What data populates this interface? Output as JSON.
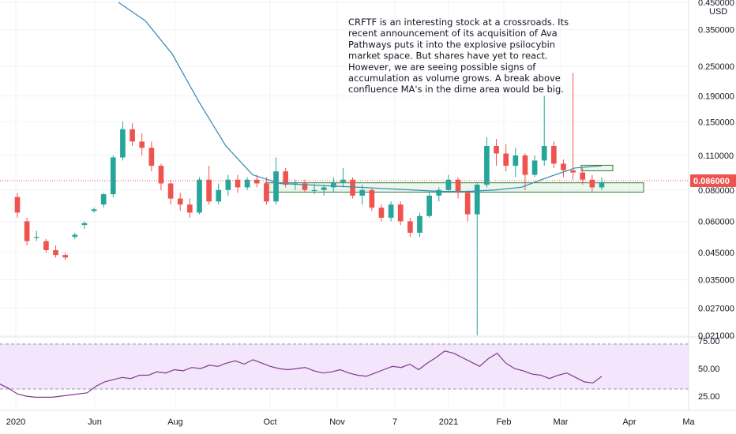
{
  "chart_data": [
    {
      "type": "candlestick",
      "currency": "USD",
      "yscale": "log",
      "ylim": [
        0.021,
        0.45
      ],
      "ytick_labels": [
        "0.450000",
        "0.350000",
        "0.250000",
        "0.190000",
        "0.150000",
        "0.110000",
        "0.080000",
        "0.060000",
        "0.045000",
        "0.035000",
        "0.027000",
        "0.021000"
      ],
      "ytick_values": [
        0.45,
        0.35,
        0.25,
        0.19,
        0.15,
        0.11,
        0.08,
        0.06,
        0.045,
        0.035,
        0.027,
        0.021
      ],
      "xtick_labels": [
        "2020",
        "Jun",
        "Aug",
        "Oct",
        "Nov",
        "7",
        "2021",
        "Feb",
        "Mar",
        "Apr",
        "Ma"
      ],
      "last_price_label": "0.086000",
      "last_price": 0.086,
      "annotation": "CRFTF is an interesting stock at a crossroads. Its recent announcement of its acquisition of Ava Pathways puts it into the explosive psilocybin market space. But shares have yet to react. However, we are seeing possible signs of accumulation as volume grows. A break above confluence MA's in the dime area would be big.",
      "annotation_lines": [
        "CRFTF is an interesting stock at a crossroads. Its",
        "recent announcement of its acquisition of Ava",
        "Pathways puts it into the explosive psilocybin",
        "market space. But shares have yet to react.",
        "However, we are seeing possible signs of",
        "accumulation as volume grows. A break above",
        "confluence MA's in the dime area would be big."
      ],
      "zones": [
        {
          "low": 0.0785,
          "high": 0.0855
        },
        {
          "low": 0.0955,
          "high": 0.1005
        }
      ],
      "candles_weekly_approx": [
        [
          0.075,
          0.078,
          0.062,
          0.065
        ],
        [
          0.06,
          0.062,
          0.048,
          0.05
        ],
        [
          0.052,
          0.055,
          0.05,
          0.052
        ],
        [
          0.05,
          0.051,
          0.045,
          0.046
        ],
        [
          0.046,
          0.048,
          0.043,
          0.044
        ],
        [
          0.044,
          0.045,
          0.042,
          0.043
        ],
        [
          0.052,
          0.054,
          0.051,
          0.053
        ],
        [
          0.058,
          0.06,
          0.056,
          0.059
        ],
        [
          0.066,
          0.068,
          0.065,
          0.067
        ],
        [
          0.07,
          0.078,
          0.068,
          0.077
        ],
        [
          0.077,
          0.11,
          0.075,
          0.108
        ],
        [
          0.108,
          0.15,
          0.105,
          0.14
        ],
        [
          0.14,
          0.148,
          0.12,
          0.125
        ],
        [
          0.125,
          0.135,
          0.11,
          0.118
        ],
        [
          0.118,
          0.125,
          0.095,
          0.1
        ],
        [
          0.1,
          0.102,
          0.08,
          0.085
        ],
        [
          0.085,
          0.088,
          0.07,
          0.074
        ],
        [
          0.074,
          0.078,
          0.066,
          0.07
        ],
        [
          0.07,
          0.074,
          0.062,
          0.065
        ],
        [
          0.065,
          0.09,
          0.064,
          0.088
        ],
        [
          0.088,
          0.1,
          0.07,
          0.072
        ],
        [
          0.072,
          0.085,
          0.07,
          0.08
        ],
        [
          0.08,
          0.092,
          0.076,
          0.088
        ],
        [
          0.088,
          0.092,
          0.078,
          0.082
        ],
        [
          0.082,
          0.09,
          0.08,
          0.088
        ],
        [
          0.088,
          0.092,
          0.082,
          0.085
        ],
        [
          0.085,
          0.09,
          0.07,
          0.072
        ],
        [
          0.072,
          0.108,
          0.07,
          0.095
        ],
        [
          0.095,
          0.098,
          0.082,
          0.084
        ],
        [
          0.084,
          0.088,
          0.08,
          0.085
        ],
        [
          0.085,
          0.088,
          0.078,
          0.08
        ],
        [
          0.08,
          0.085,
          0.077,
          0.08
        ],
        [
          0.08,
          0.084,
          0.076,
          0.082
        ],
        [
          0.082,
          0.09,
          0.078,
          0.086
        ],
        [
          0.086,
          0.098,
          0.082,
          0.088
        ],
        [
          0.088,
          0.09,
          0.074,
          0.076
        ],
        [
          0.076,
          0.084,
          0.07,
          0.08
        ],
        [
          0.08,
          0.082,
          0.066,
          0.068
        ],
        [
          0.068,
          0.07,
          0.06,
          0.062
        ],
        [
          0.062,
          0.072,
          0.06,
          0.07
        ],
        [
          0.07,
          0.072,
          0.058,
          0.06
        ],
        [
          0.06,
          0.062,
          0.052,
          0.054
        ],
        [
          0.054,
          0.065,
          0.052,
          0.063
        ],
        [
          0.063,
          0.078,
          0.062,
          0.076
        ],
        [
          0.076,
          0.082,
          0.072,
          0.08
        ],
        [
          0.08,
          0.092,
          0.078,
          0.088
        ],
        [
          0.088,
          0.09,
          0.074,
          0.078
        ],
        [
          0.078,
          0.08,
          0.06,
          0.064
        ],
        [
          0.064,
          0.085,
          0.021,
          0.084
        ],
        [
          0.084,
          0.13,
          0.082,
          0.12
        ],
        [
          0.12,
          0.128,
          0.1,
          0.112
        ],
        [
          0.112,
          0.122,
          0.095,
          0.1
        ],
        [
          0.1,
          0.118,
          0.09,
          0.11
        ],
        [
          0.11,
          0.112,
          0.08,
          0.092
        ],
        [
          0.092,
          0.11,
          0.09,
          0.105
        ],
        [
          0.105,
          0.19,
          0.1,
          0.12
        ],
        [
          0.12,
          0.125,
          0.098,
          0.102
        ],
        [
          0.102,
          0.106,
          0.09,
          0.096
        ],
        [
          0.096,
          0.235,
          0.088,
          0.094
        ],
        [
          0.094,
          0.098,
          0.084,
          0.088
        ],
        [
          0.088,
          0.092,
          0.079,
          0.082
        ],
        [
          0.082,
          0.09,
          0.08,
          0.086
        ]
      ],
      "moving_average_approx": [
        0.45,
        0.38,
        0.28,
        0.18,
        0.12,
        0.092,
        0.085,
        0.084,
        0.083,
        0.082,
        0.081,
        0.08,
        0.079,
        0.079,
        0.08,
        0.082,
        0.09,
        0.098,
        0.1
      ],
      "indicator": {
        "name": "RSI",
        "ytick_labels": [
          "75.00",
          "50.00",
          "25.00"
        ],
        "ylim": [
          15,
          78
        ],
        "overbought": 70,
        "oversold": 30,
        "values_approx": [
          36,
          32,
          27,
          25,
          24,
          24,
          24,
          25,
          26,
          27,
          28,
          34,
          38,
          40,
          42,
          41,
          44,
          44,
          47,
          46,
          49,
          48,
          51,
          50,
          53,
          52,
          55,
          57,
          54,
          58,
          55,
          52,
          50,
          49,
          50,
          51,
          48,
          46,
          47,
          49,
          46,
          44,
          43,
          46,
          49,
          52,
          51,
          54,
          49,
          55,
          60,
          66,
          64,
          60,
          56,
          52,
          59,
          64,
          55,
          50,
          48,
          45,
          44,
          41,
          44,
          46,
          42,
          38,
          37,
          43
        ]
      }
    }
  ]
}
